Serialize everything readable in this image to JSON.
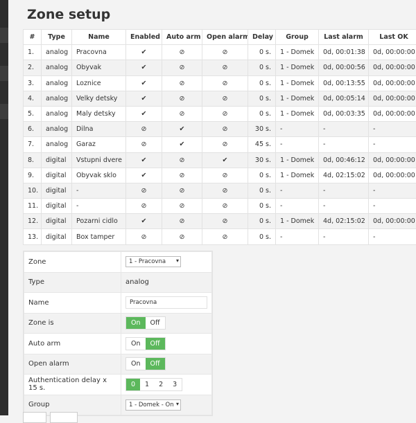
{
  "header": {
    "title": "Zone setup"
  },
  "table": {
    "columns": [
      "#",
      "Type",
      "Name",
      "Enabled",
      "Auto arm",
      "Open alarm",
      "Delay",
      "Group",
      "Last alarm",
      "Last OK"
    ],
    "rows": [
      [
        "1.",
        "analog",
        "Pracovna",
        "✔",
        "⊘",
        "⊘",
        "0 s.",
        "1 - Domek",
        "0d, 00:01:38",
        "0d, 00:00:00"
      ],
      [
        "2.",
        "analog",
        "Obyvak",
        "✔",
        "⊘",
        "⊘",
        "0 s.",
        "1 - Domek",
        "0d, 00:00:56",
        "0d, 00:00:00"
      ],
      [
        "3.",
        "analog",
        "Loznice",
        "✔",
        "⊘",
        "⊘",
        "0 s.",
        "1 - Domek",
        "0d, 00:13:55",
        "0d, 00:00:00"
      ],
      [
        "4.",
        "analog",
        "Velky detsky",
        "✔",
        "⊘",
        "⊘",
        "0 s.",
        "1 - Domek",
        "0d, 00:05:14",
        "0d, 00:00:00"
      ],
      [
        "5.",
        "analog",
        "Maly detsky",
        "✔",
        "⊘",
        "⊘",
        "0 s.",
        "1 - Domek",
        "0d, 00:03:35",
        "0d, 00:00:00"
      ],
      [
        "6.",
        "analog",
        "Dilna",
        "⊘",
        "✔",
        "⊘",
        "30 s.",
        "-",
        "-",
        "-"
      ],
      [
        "7.",
        "analog",
        "Garaz",
        "⊘",
        "✔",
        "⊘",
        "45 s.",
        "-",
        "-",
        "-"
      ],
      [
        "8.",
        "digital",
        "Vstupni dvere",
        "✔",
        "⊘",
        "✔",
        "30 s.",
        "1 - Domek",
        "0d, 00:46:12",
        "0d, 00:00:00"
      ],
      [
        "9.",
        "digital",
        "Obyvak sklo",
        "✔",
        "⊘",
        "⊘",
        "0 s.",
        "1 - Domek",
        "4d, 02:15:02",
        "0d, 00:00:00"
      ],
      [
        "10.",
        "digital",
        "-",
        "⊘",
        "⊘",
        "⊘",
        "0 s.",
        "-",
        "-",
        "-"
      ],
      [
        "11.",
        "digital",
        "-",
        "⊘",
        "⊘",
        "⊘",
        "0 s.",
        "-",
        "-",
        "-"
      ],
      [
        "12.",
        "digital",
        "Pozarni cidlo",
        "✔",
        "⊘",
        "⊘",
        "0 s.",
        "1 - Domek",
        "4d, 02:15:02",
        "0d, 00:00:00"
      ],
      [
        "13.",
        "digital",
        "Box tamper",
        "⊘",
        "⊘",
        "⊘",
        "0 s.",
        "-",
        "-",
        "-"
      ]
    ]
  },
  "form": {
    "fields": [
      {
        "label": "Zone",
        "select": "1 - Pracovna"
      },
      {
        "label": "Type",
        "value": "analog"
      },
      {
        "label": "Name",
        "input": "Pracovna"
      },
      {
        "label": "Zone is",
        "options": [
          "On",
          "Off"
        ],
        "selected": 0
      },
      {
        "label": "Auto arm",
        "options": [
          "On",
          "Off"
        ],
        "selected": 1
      },
      {
        "label": "Open alarm",
        "options": [
          "On",
          "Off"
        ],
        "selected": 1
      },
      {
        "label": "Authentication delay x 15 s.",
        "options": [
          "0",
          "1",
          "2",
          "3"
        ],
        "selected": 0
      },
      {
        "label": "Group",
        "select": "1 - Domek - On"
      }
    ]
  }
}
